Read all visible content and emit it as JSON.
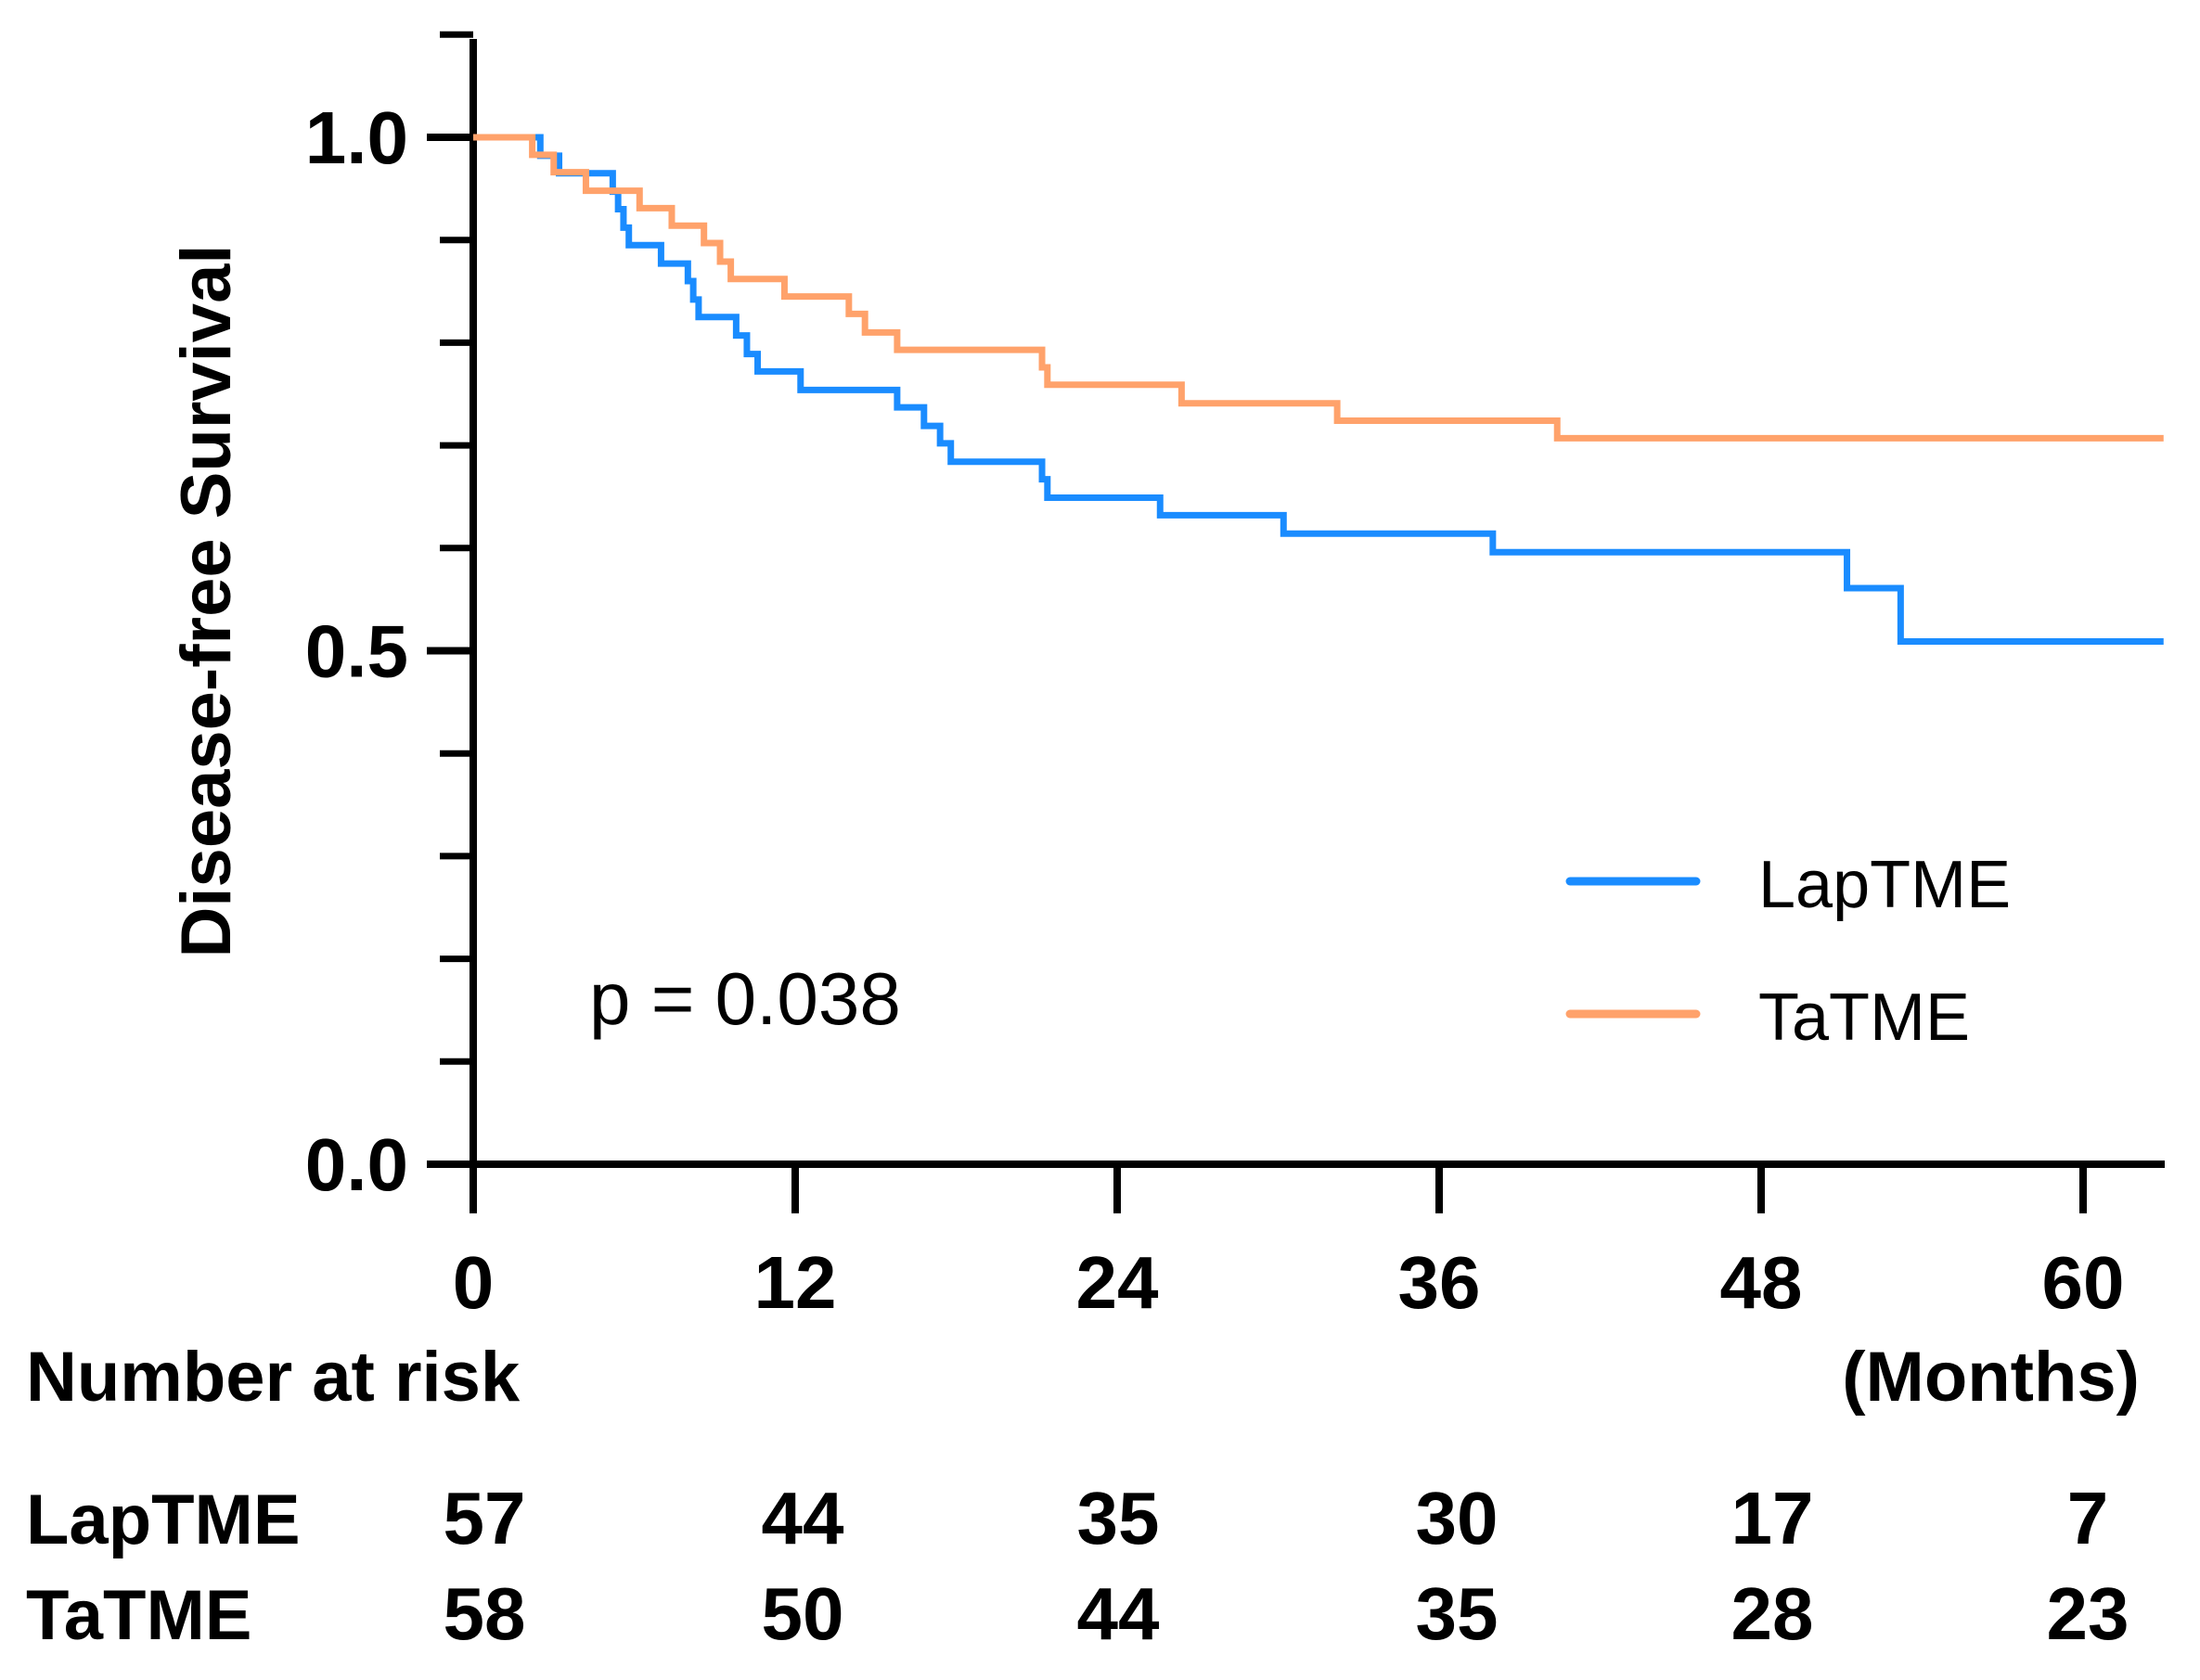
{
  "chart_data": {
    "type": "line",
    "subtype": "kaplan-meier",
    "title": "",
    "ylabel": "Disease-free Survival",
    "xlabel": "(Months)",
    "xlim": [
      0,
      63
    ],
    "ylim": [
      0,
      1.1
    ],
    "x_ticks": [
      0,
      12,
      24,
      36,
      48,
      60
    ],
    "x_tick_labels": [
      "0",
      "12",
      "24",
      "36",
      "48",
      "60"
    ],
    "y_ticks": [
      0.0,
      0.5,
      1.0
    ],
    "y_tick_labels": [
      "0.0",
      "0.5",
      "1.0"
    ],
    "y_minor_ticks": [
      0.1,
      0.2,
      0.3,
      0.4,
      0.6,
      0.7,
      0.8,
      0.9,
      1.1
    ],
    "annotation": "p = 0.038",
    "legend_position": "center-right",
    "series": [
      {
        "name": "LapTME",
        "color": "#1a8cff",
        "steps": [
          [
            0,
            1.0
          ],
          [
            2.5,
            0.982
          ],
          [
            3.2,
            0.965
          ],
          [
            5.2,
            0.947
          ],
          [
            5.4,
            0.93
          ],
          [
            5.6,
            0.912
          ],
          [
            5.8,
            0.895
          ],
          [
            7.0,
            0.877
          ],
          [
            8.0,
            0.86
          ],
          [
            8.2,
            0.842
          ],
          [
            8.4,
            0.825
          ],
          [
            9.8,
            0.807
          ],
          [
            10.2,
            0.789
          ],
          [
            10.6,
            0.772
          ],
          [
            12.2,
            0.754
          ],
          [
            15.8,
            0.737
          ],
          [
            16.8,
            0.719
          ],
          [
            17.4,
            0.702
          ],
          [
            17.8,
            0.684
          ],
          [
            21.2,
            0.667
          ],
          [
            21.4,
            0.649
          ],
          [
            25.6,
            0.632
          ],
          [
            30.2,
            0.614
          ],
          [
            38.0,
            0.596
          ],
          [
            51.2,
            0.561
          ],
          [
            53.2,
            0.509
          ]
        ],
        "x_end": 63
      },
      {
        "name": "TaTME",
        "color": "#ffa26b",
        "steps": [
          [
            0,
            1.0
          ],
          [
            2.2,
            0.983
          ],
          [
            3.0,
            0.966
          ],
          [
            4.2,
            0.948
          ],
          [
            6.2,
            0.931
          ],
          [
            7.4,
            0.914
          ],
          [
            8.6,
            0.897
          ],
          [
            9.2,
            0.879
          ],
          [
            9.6,
            0.862
          ],
          [
            11.6,
            0.845
          ],
          [
            14.0,
            0.828
          ],
          [
            14.6,
            0.81
          ],
          [
            15.8,
            0.793
          ],
          [
            21.2,
            0.776
          ],
          [
            21.4,
            0.759
          ],
          [
            26.4,
            0.741
          ],
          [
            32.2,
            0.724
          ],
          [
            40.4,
            0.707
          ]
        ],
        "x_end": 63
      }
    ],
    "risk_table": {
      "title": "Number at risk",
      "time_points": [
        0,
        12,
        24,
        36,
        48,
        60
      ],
      "rows": [
        {
          "label": "LapTME",
          "values": [
            57,
            44,
            35,
            30,
            17,
            7
          ]
        },
        {
          "label": "TaTME",
          "values": [
            58,
            50,
            44,
            35,
            28,
            23
          ]
        }
      ]
    }
  }
}
